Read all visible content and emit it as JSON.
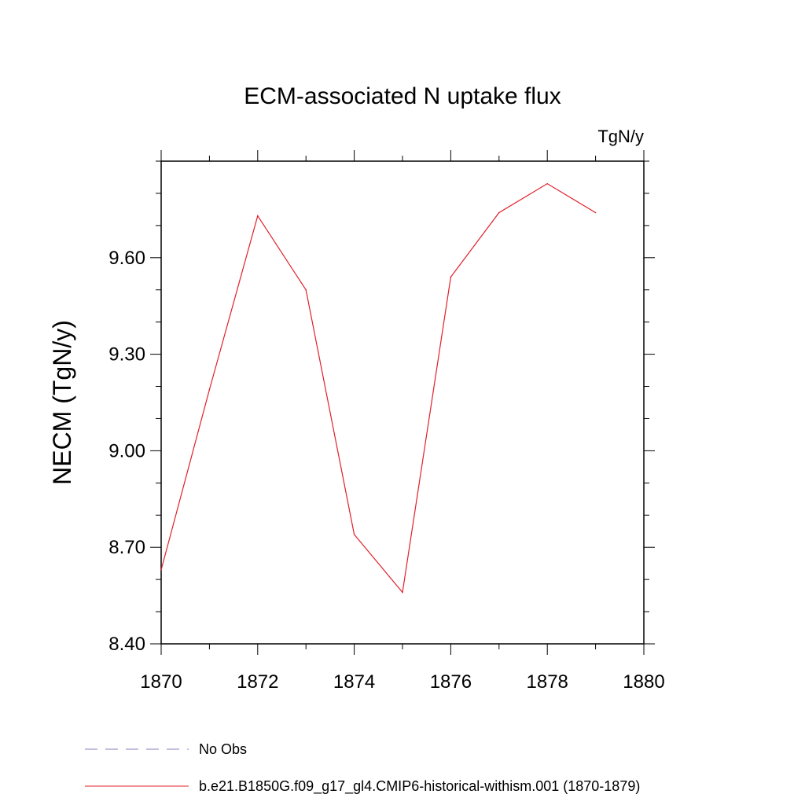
{
  "chart_data": {
    "type": "line",
    "title": "ECM-associated N uptake flux",
    "units_label": "TgN/y",
    "ylabel": "NECM  (TgN/y)",
    "xlabel": "",
    "xlim": [
      1870,
      1880
    ],
    "ylim": [
      8.4,
      9.9
    ],
    "x_ticks": [
      1870,
      1872,
      1874,
      1876,
      1878,
      1880
    ],
    "x_tick_labels": [
      "1870",
      "1872",
      "1874",
      "1876",
      "1878",
      "1880"
    ],
    "y_ticks": [
      8.4,
      8.7,
      9.0,
      9.3,
      9.6
    ],
    "y_tick_labels": [
      "8.40",
      "8.70",
      "9.00",
      "9.30",
      "9.60"
    ],
    "grid": false,
    "legend_position": "bottom",
    "series": [
      {
        "name": "b.e21.B1850G.f09_g17_gl4.CMIP6-historical-withism.001 (1870-1879)",
        "color": "#e0202a",
        "style": "solid",
        "x": [
          1870,
          1871,
          1872,
          1873,
          1874,
          1875,
          1876,
          1877,
          1878,
          1879
        ],
        "values": [
          8.63,
          9.19,
          9.73,
          9.5,
          8.74,
          8.56,
          9.54,
          9.74,
          9.83,
          9.74
        ]
      }
    ],
    "legend_entries": [
      {
        "name": "No Obs",
        "color": "#8a7fbf",
        "style": "dashed"
      },
      {
        "name": "b.e21.B1850G.f09_g17_gl4.CMIP6-historical-withism.001 (1870-1879)",
        "color": "#e0202a",
        "style": "solid"
      }
    ]
  }
}
